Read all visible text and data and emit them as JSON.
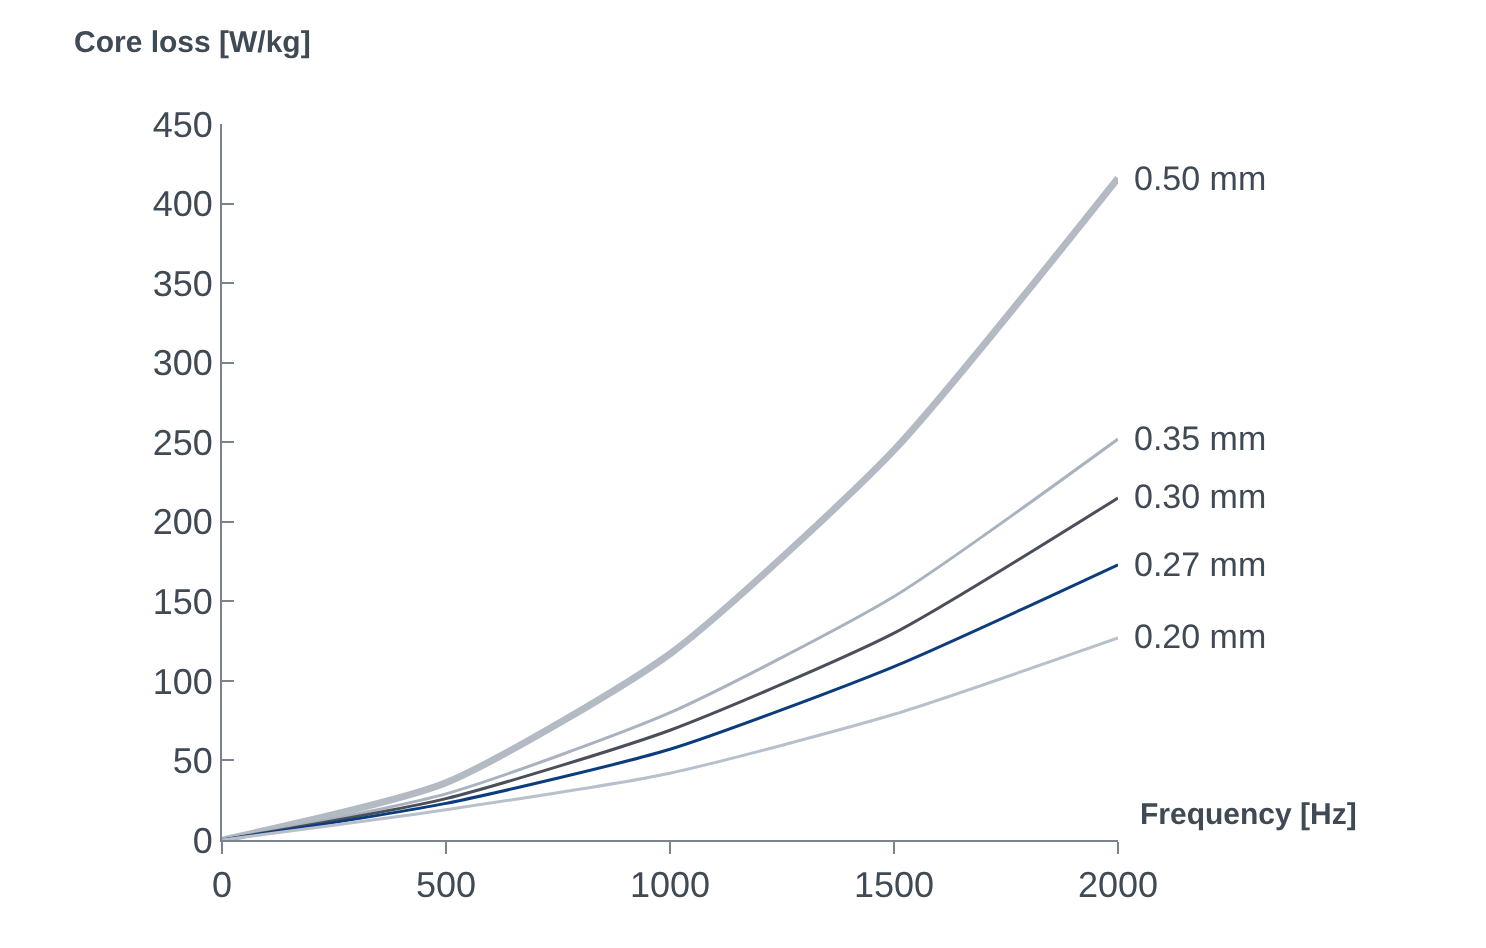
{
  "chart_data": {
    "type": "line",
    "xlabel": "Frequency [Hz]",
    "ylabel": "Core loss [W/kg]",
    "x": [
      0,
      500,
      1000,
      1500,
      2000
    ],
    "series": [
      {
        "name": "0.50 mm",
        "color": "#b3bac3",
        "values": [
          0,
          36,
          117,
          245,
          416
        ]
      },
      {
        "name": "0.35 mm",
        "color": "#a9b3c0",
        "values": [
          0,
          29,
          80,
          153,
          252
        ]
      },
      {
        "name": "0.30 mm",
        "color": "#4a4f5a",
        "values": [
          0,
          26,
          69,
          130,
          215
        ]
      },
      {
        "name": "0.27 mm",
        "color": "#0b3d7d",
        "values": [
          0,
          23,
          57,
          109,
          173
        ]
      },
      {
        "name": "0.20 mm",
        "color": "#b7c0cb",
        "values": [
          0,
          19,
          42,
          79,
          127
        ]
      }
    ],
    "xlim": [
      0,
      2000
    ],
    "xticks": [
      0,
      500,
      1000,
      1500,
      2000
    ],
    "ylim": [
      0,
      450
    ],
    "yticks": [
      0,
      50,
      100,
      150,
      200,
      250,
      300,
      350,
      400,
      450
    ],
    "legend": false,
    "marker": "none",
    "line_style": "solid"
  }
}
